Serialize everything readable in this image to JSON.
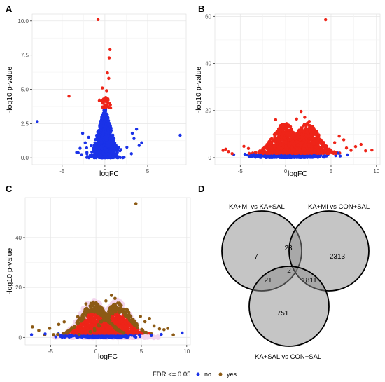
{
  "panels": {
    "a": "A",
    "b": "B",
    "c": "C",
    "d": "D"
  },
  "colors": {
    "no": "#1a32e8",
    "yes_ab": "#ee2418",
    "yes_c": "#8c5a14",
    "halo_c": "#f3d6ee",
    "venn_fill": "#8c8c8c",
    "venn_stroke": "#000000"
  },
  "chart_data": [
    {
      "type": "scatter",
      "panel": "A",
      "xlabel": "logFC",
      "ylabel": "-log10 p-value",
      "xlim": [
        -8.5,
        9.5
      ],
      "ylim": [
        -0.5,
        10.5
      ],
      "xticks": [
        -5,
        0,
        5
      ],
      "yticks": [
        0.0,
        2.5,
        5.0,
        7.5,
        10.0
      ],
      "ytick_labels": [
        "0.0",
        "2.5",
        "5.0",
        "7.5",
        "10.0"
      ],
      "grid": true,
      "series": [
        {
          "name": "no",
          "points": [
            [
              -7.9,
              2.65
            ],
            [
              8.8,
              1.65
            ],
            [
              -2.9,
              0.7
            ],
            [
              -2.6,
              1.8
            ],
            [
              -2.3,
              1.1
            ],
            [
              -2.1,
              0.4
            ],
            [
              -1.9,
              1.5
            ],
            [
              -1.7,
              0.2
            ],
            [
              3.2,
              1.8
            ],
            [
              3.4,
              1.4
            ],
            [
              3.7,
              2.1
            ],
            [
              4.0,
              0.9
            ],
            [
              4.3,
              1.1
            ],
            [
              3.1,
              0.3
            ],
            [
              -3.3,
              0.4
            ]
          ]
        },
        {
          "name": "yes",
          "points": [
            [
              -0.8,
              10.1
            ],
            [
              -4.2,
              4.5
            ],
            [
              0.6,
              7.9
            ],
            [
              0.5,
              7.3
            ],
            [
              0.3,
              6.2
            ],
            [
              0.45,
              5.8
            ],
            [
              -0.3,
              5.1
            ],
            [
              0.2,
              4.9
            ],
            [
              0.1,
              4.4
            ],
            [
              -0.4,
              4.2
            ],
            [
              0.35,
              4.3
            ]
          ]
        }
      ]
    },
    {
      "type": "scatter",
      "panel": "B",
      "xlabel": "logFC",
      "ylabel": "-log10 p-value",
      "xlim": [
        -7.8,
        10.4
      ],
      "ylim": [
        -3,
        61
      ],
      "xticks": [
        -5,
        0,
        5,
        10
      ],
      "yticks": [
        0,
        20,
        40,
        60
      ],
      "grid": true,
      "series": [
        {
          "name": "no",
          "points": [
            [
              -4.0,
              0.5
            ],
            [
              -3.5,
              1.3
            ],
            [
              -3.2,
              0.6
            ],
            [
              6.8,
              1.2
            ],
            [
              6.0,
              0.7
            ],
            [
              5.8,
              1.9
            ]
          ]
        },
        {
          "name": "yes",
          "points": [
            [
              4.4,
              58.6
            ],
            [
              1.7,
              19.6
            ],
            [
              -6.9,
              3.1
            ],
            [
              -6.6,
              3.6
            ],
            [
              -6.3,
              2.6
            ],
            [
              -4.6,
              4.8
            ],
            [
              -4.1,
              3.9
            ],
            [
              -5.9,
              1.7
            ],
            [
              7.7,
              4.7
            ],
            [
              8.3,
              5.6
            ],
            [
              8.8,
              2.9
            ],
            [
              9.5,
              3.2
            ],
            [
              7.2,
              3.1
            ],
            [
              6.7,
              4.1
            ],
            [
              6.4,
              7.6
            ],
            [
              5.9,
              9.1
            ],
            [
              5.4,
              6.4
            ],
            [
              1.2,
              16.4
            ],
            [
              2.1,
              17.1
            ],
            [
              2.6,
              15.4
            ],
            [
              -1.1,
              16.1
            ],
            [
              -0.6,
              12.6
            ]
          ]
        }
      ]
    },
    {
      "type": "scatter",
      "panel": "C",
      "xlabel": "logFC",
      "ylabel": "-log10 p-value",
      "xlim": [
        -7.8,
        10.4
      ],
      "ylim": [
        -3,
        56
      ],
      "xticks": [
        -5,
        0,
        5,
        10
      ],
      "yticks": [
        0,
        20,
        40
      ],
      "grid": true,
      "series": [
        {
          "name": "no",
          "points": [
            [
              -7.1,
              1.1
            ],
            [
              -5.6,
              1.4
            ],
            [
              7.2,
              1.2
            ],
            [
              9.5,
              1.8
            ],
            [
              6.1,
              0.7
            ],
            [
              -3.9,
              0.4
            ]
          ]
        },
        {
          "name": "yes",
          "points": [
            [
              4.4,
              53.6
            ],
            [
              1.7,
              16.8
            ],
            [
              -7.0,
              4.2
            ],
            [
              -6.3,
              2.8
            ],
            [
              -5.1,
              3.6
            ],
            [
              -4.1,
              5.2
            ],
            [
              -3.5,
              6.2
            ],
            [
              7.0,
              3.4
            ],
            [
              7.5,
              3.1
            ],
            [
              7.9,
              3.6
            ],
            [
              5.9,
              7.6
            ],
            [
              5.4,
              6.3
            ],
            [
              4.9,
              8.4
            ],
            [
              6.4,
              4.6
            ],
            [
              1.1,
              14.6
            ],
            [
              2.1,
              15.6
            ],
            [
              2.6,
              13.4
            ],
            [
              -1.1,
              13.4
            ],
            [
              -0.6,
              10.6
            ],
            [
              -2.0,
              8.3
            ]
          ]
        }
      ]
    },
    {
      "type": "venn",
      "panel": "D",
      "sets": [
        "KA+MI vs KA+SAL",
        "KA+MI vs CON+SAL",
        "KA+SAL vs CON+SAL"
      ],
      "regions": {
        "only_1": 7,
        "only_2": 2313,
        "only_3": 751,
        "1_2": 23,
        "1_3": 21,
        "2_3": 1811,
        "1_2_3": 2
      }
    }
  ],
  "legend": {
    "title": "FDR <= 0.05",
    "items": [
      {
        "label": "no",
        "color": "#1a32e8"
      },
      {
        "label": "yes",
        "color": "#8c5a14"
      }
    ]
  }
}
